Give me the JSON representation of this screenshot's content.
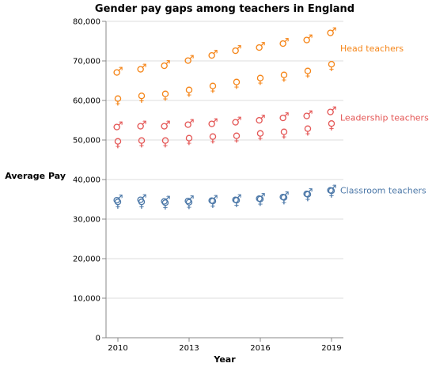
{
  "chart_data": {
    "type": "scatter",
    "title": "Gender pay gaps among teachers in England",
    "xlabel": "Year",
    "ylabel": "Average Pay",
    "xlim": [
      2009.5,
      2019.5
    ],
    "ylim": [
      0,
      80000
    ],
    "x_ticks": [
      2010,
      2013,
      2016,
      2019
    ],
    "x_tick_labels": [
      "2010",
      "2013",
      "2016",
      "2019"
    ],
    "y_ticks": [
      0,
      10000,
      20000,
      30000,
      40000,
      50000,
      60000,
      70000,
      80000
    ],
    "y_tick_labels": [
      "0",
      "10,000",
      "20,000",
      "30,000",
      "40,000",
      "50,000",
      "60,000",
      "70,000",
      "80,000"
    ],
    "grid": "horizontal",
    "male_symbol": "♂",
    "female_symbol": "♀",
    "x": [
      2010,
      2011,
      2012,
      2013,
      2014,
      2015,
      2016,
      2017,
      2018,
      2019
    ],
    "series": [
      {
        "name": "Head teachers",
        "color": "#f58518",
        "male": [
          67500,
          68300,
          69200,
          70500,
          71800,
          73000,
          73800,
          74800,
          75700,
          77500
        ],
        "female": [
          60300,
          61000,
          61500,
          62500,
          63500,
          64500,
          65500,
          66300,
          67300,
          69000
        ]
      },
      {
        "name": "Leadership teachers",
        "color": "#e45756",
        "male": [
          53700,
          53900,
          53900,
          54300,
          54500,
          54900,
          55400,
          56000,
          56500,
          57500
        ],
        "female": [
          49500,
          49700,
          49700,
          50300,
          50700,
          50900,
          51500,
          51900,
          52700,
          54000
        ]
      },
      {
        "name": "Classroom teachers",
        "color": "#4c78a8",
        "male": [
          35200,
          35300,
          34900,
          35000,
          35100,
          35300,
          35600,
          36000,
          36800,
          37700
        ],
        "female": [
          34200,
          34200,
          34000,
          34100,
          34400,
          34600,
          34900,
          35300,
          36100,
          37000
        ]
      }
    ]
  }
}
